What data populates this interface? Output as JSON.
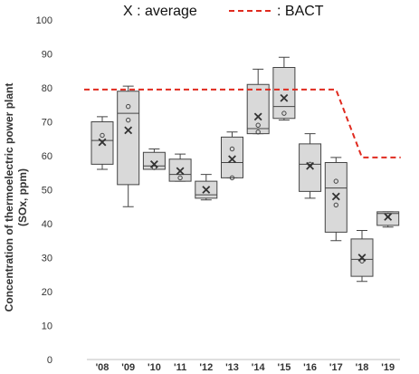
{
  "chart_data": {
    "type": "box",
    "legend": {
      "average_label": "X : average",
      "bact_label": ": BACT",
      "bact_color": "#e02a1f",
      "placement": "top"
    },
    "ylabel_line1": "Concentration of thermoelectric power plant",
    "ylabel_line2": "(SOx, ppm)",
    "ylim": [
      0,
      100
    ],
    "y_ticks": [
      0,
      10,
      20,
      30,
      40,
      50,
      60,
      70,
      80,
      90,
      100
    ],
    "grid": false,
    "box_fill": "#d9d9d9",
    "categories": [
      "'08",
      "'09",
      "'10",
      "'11",
      "'12",
      "'13",
      "'14",
      "'15",
      "'16",
      "'17",
      "'18",
      "'19"
    ],
    "boxes": [
      {
        "whisker_low": 56,
        "q1": 57.5,
        "median": 64.5,
        "q3": 70,
        "whisker_high": 71.5,
        "mean": 64,
        "points": [
          66
        ]
      },
      {
        "whisker_low": 45,
        "q1": 51.5,
        "median": 72.5,
        "q3": 79,
        "whisker_high": 80.5,
        "mean": 67.5,
        "points": [
          70.5,
          74.5
        ]
      },
      {
        "whisker_low": 56,
        "q1": 56,
        "median": 57,
        "q3": 61,
        "whisker_high": 62,
        "mean": 57.5,
        "points": [
          56.5
        ]
      },
      {
        "whisker_low": 52.5,
        "q1": 52.5,
        "median": 54.5,
        "q3": 59,
        "whisker_high": 60.5,
        "mean": 55.5,
        "points": [
          53.5
        ]
      },
      {
        "whisker_low": 47,
        "q1": 47.5,
        "median": 48.5,
        "q3": 52.5,
        "whisker_high": 54.5,
        "mean": 50,
        "points": []
      },
      {
        "whisker_low": 53.5,
        "q1": 53.5,
        "median": 58,
        "q3": 65.5,
        "whisker_high": 67,
        "mean": 59,
        "points": [
          53.5,
          62
        ]
      },
      {
        "whisker_low": 66.5,
        "q1": 66.5,
        "median": 68,
        "q3": 81,
        "whisker_high": 85.5,
        "mean": 71.5,
        "points": [
          67,
          69
        ]
      },
      {
        "whisker_low": 70.5,
        "q1": 71,
        "median": 74.5,
        "q3": 86,
        "whisker_high": 89,
        "mean": 77,
        "points": [
          72.5
        ]
      },
      {
        "whisker_low": 47.5,
        "q1": 49.5,
        "median": 57.5,
        "q3": 63.5,
        "whisker_high": 66.5,
        "mean": 57,
        "points": [
          57.5
        ]
      },
      {
        "whisker_low": 35,
        "q1": 37.5,
        "median": 50.5,
        "q3": 58,
        "whisker_high": 59.5,
        "mean": 48,
        "points": [
          45.5,
          52.5
        ]
      },
      {
        "whisker_low": 23,
        "q1": 24.5,
        "median": 29.5,
        "q3": 35.5,
        "whisker_high": 38,
        "mean": 30,
        "points": [
          29
        ]
      },
      {
        "whisker_low": 39,
        "q1": 39.5,
        "median": 43,
        "q3": 43.5,
        "whisker_high": 43.5,
        "mean": 42,
        "points": [
          42.5
        ]
      }
    ],
    "bact": [
      {
        "x": "'08",
        "y": 79.5
      },
      {
        "x": "'17",
        "y": 79.5
      },
      {
        "x": "'18",
        "y": 59.5
      },
      {
        "x": "'19",
        "y": 59.5
      }
    ]
  }
}
